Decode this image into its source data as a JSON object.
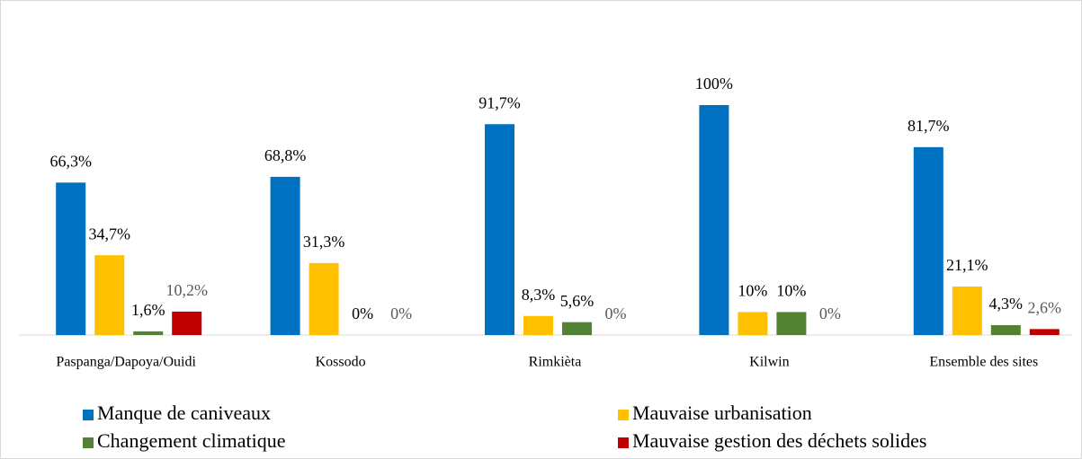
{
  "chart_data": {
    "type": "bar",
    "categories": [
      "Paspanga/Dapoya/Ouidi",
      "Kossodo",
      "Rimkièta",
      "Kilwin",
      "Ensemble des sites"
    ],
    "ylim": [
      0,
      100
    ],
    "series": [
      {
        "name": "Manque de caniveaux",
        "color": "#0070c0",
        "values": [
          66.3,
          68.8,
          91.7,
          100,
          81.7
        ],
        "value_labels": [
          "66,3%",
          "68,8%",
          "91,7%",
          "100%",
          "81,7%"
        ]
      },
      {
        "name": "Mauvaise urbanisation",
        "color": "#ffc000",
        "values": [
          34.7,
          31.3,
          8.3,
          10,
          21.1
        ],
        "value_labels": [
          "34,7%",
          "31,3%",
          "8,3%",
          "10%",
          "21,1%"
        ]
      },
      {
        "name": "Changement climatique",
        "color": "#548235",
        "values": [
          1.6,
          0,
          5.6,
          10,
          4.3
        ],
        "value_labels": [
          "1,6%",
          "0%",
          "5,6%",
          "10%",
          "4,3%"
        ]
      },
      {
        "name": "Mauvaise gestion des déchets solides",
        "color": "#c00000",
        "values": [
          10.2,
          0,
          0,
          0,
          2.6
        ],
        "value_labels": [
          "10,2%",
          "0%",
          "0%",
          "0%",
          "2,6%"
        ]
      }
    ]
  }
}
